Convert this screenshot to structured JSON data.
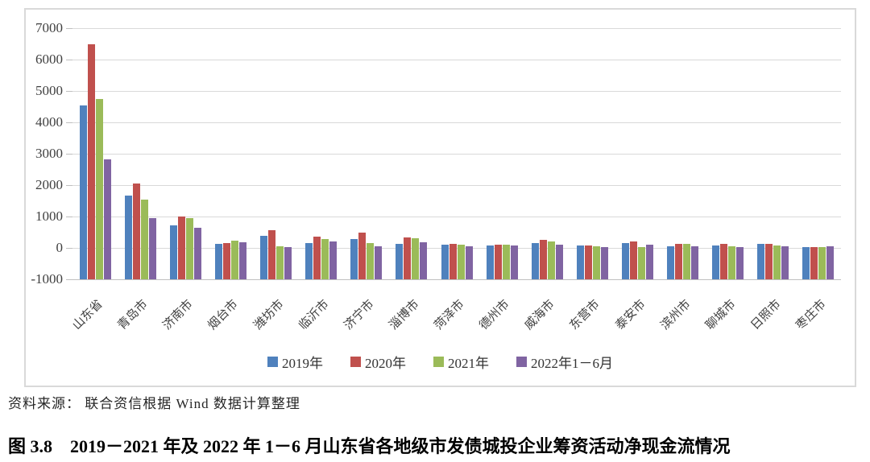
{
  "chart": {
    "source_note": "资料来源： 联合资信根据 Wind 数据计算整理",
    "caption": "图 3.8　2019－2021 年及 2022 年 1－6 月山东省各地级市发债城投企业筹资活动净现金流情况",
    "colors": {
      "series_2019": "#4F81BD",
      "series_2020": "#C0504D",
      "series_2021": "#9BBB59",
      "series_2022h1": "#8064A2",
      "gridline": "#D9D9D9",
      "axis_text": "#404040",
      "chart_border": "#D9D9D9"
    }
  },
  "chart_data": {
    "type": "bar",
    "title": "",
    "xlabel": "",
    "ylabel": "",
    "ylim": [
      -1000,
      7000
    ],
    "ytick_step": 1000,
    "bar_base": -1000,
    "grid": true,
    "legend_position": "bottom",
    "categories": [
      "山东省",
      "青岛市",
      "济南市",
      "烟台市",
      "潍坊市",
      "临沂市",
      "济宁市",
      "淄博市",
      "菏泽市",
      "德州市",
      "威海市",
      "东营市",
      "泰安市",
      "滨州市",
      "聊城市",
      "日照市",
      "枣庄市"
    ],
    "series": [
      {
        "name": "2019年",
        "color": "#4F81BD",
        "values": [
          4550,
          1660,
          730,
          130,
          375,
          160,
          280,
          120,
          100,
          80,
          160,
          70,
          150,
          60,
          70,
          140,
          35
        ]
      },
      {
        "name": "2020年",
        "color": "#C0504D",
        "values": [
          6500,
          2060,
          1000,
          165,
          575,
          350,
          500,
          330,
          140,
          110,
          270,
          70,
          200,
          120,
          140,
          140,
          35
        ]
      },
      {
        "name": "2021年",
        "color": "#9BBB59",
        "values": [
          4750,
          1540,
          960,
          225,
          50,
          290,
          165,
          300,
          100,
          110,
          200,
          55,
          30,
          120,
          55,
          80,
          35
        ]
      },
      {
        "name": "2022年1－6月",
        "color": "#8064A2",
        "values": [
          2820,
          960,
          640,
          190,
          20,
          195,
          60,
          185,
          50,
          75,
          95,
          30,
          110,
          65,
          25,
          60,
          50
        ]
      }
    ]
  }
}
